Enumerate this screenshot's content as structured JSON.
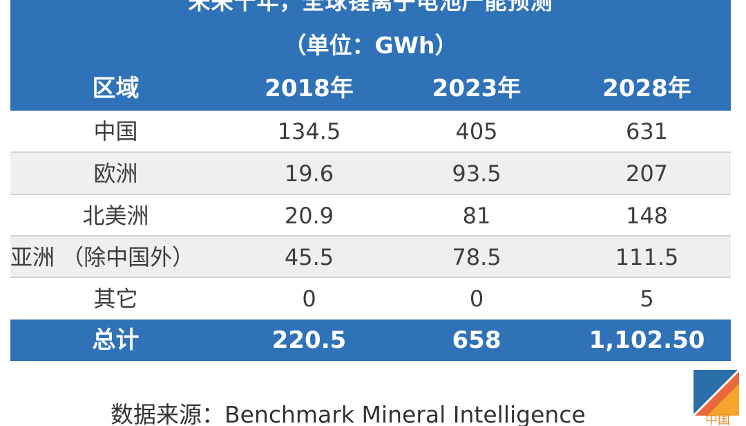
{
  "table": {
    "title_line1": "未来十年，全球锂离子电池产能预测",
    "title_line2": "（单位：GWh）",
    "headers": [
      "区域",
      "2018年",
      "2023年",
      "2028年"
    ],
    "rows": [
      [
        "中国",
        "134.5",
        "405",
        "631"
      ],
      [
        "欧洲",
        "19.6",
        "93.5",
        "207"
      ],
      [
        "北美洲",
        "20.9",
        "81",
        "148"
      ],
      [
        "亚洲 （除中国外）",
        "45.5",
        "78.5",
        "111.5"
      ],
      [
        "其它",
        "0",
        "0",
        "5"
      ]
    ],
    "total": [
      "总计",
      "220.5",
      "658",
      "1,102.50"
    ]
  },
  "source": "数据来源：Benchmark Mineral Intelligence",
  "logo": {
    "icon": "news-logo-icon",
    "caption": "中国"
  },
  "colors": {
    "header_blue": "#2f72b8",
    "row_gray": "#efefef",
    "logo_orange": "#f08a2a"
  }
}
